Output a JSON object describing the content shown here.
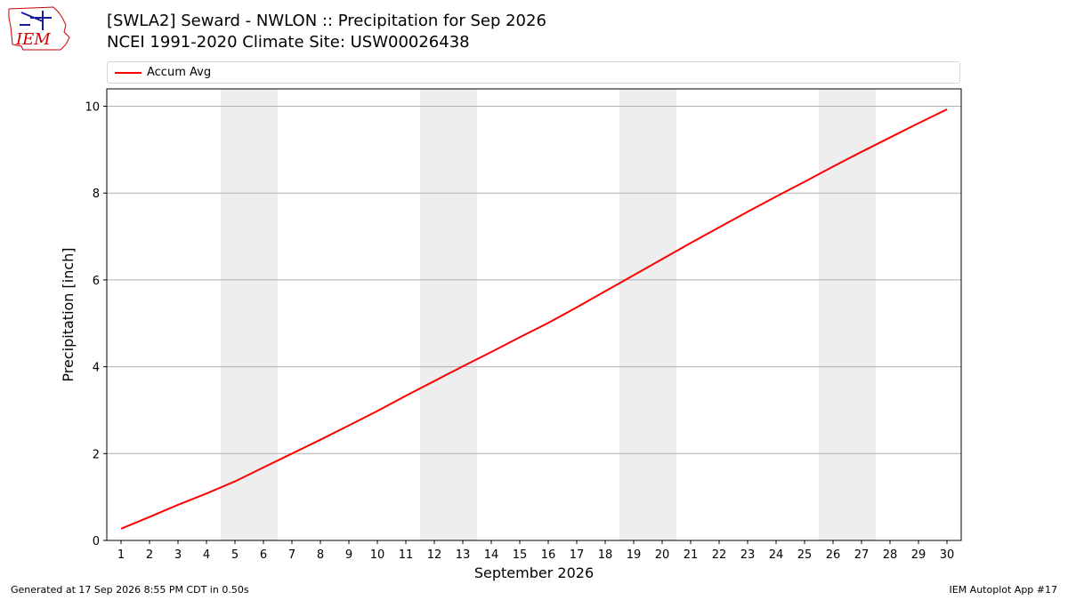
{
  "logo": {
    "text": "IEM"
  },
  "title": {
    "line1": "[SWLA2] Seward - NWLON :: Precipitation for Sep 2026",
    "line2": "NCEI 1991-2020 Climate Site: USW00026438"
  },
  "footer": {
    "generated": "Generated at 17 Sep 2026 8:55 PM CDT in 0.50s",
    "app": "IEM Autoplot App #17"
  },
  "colors": {
    "series": "#ff0000",
    "weekend_band": "#eeeeee",
    "grid": "#b0b0b0",
    "logo": "#cc0000"
  },
  "chart_data": {
    "type": "line",
    "xlabel": "September 2026",
    "ylabel": "Precipitation [inch]",
    "ylim": [
      0,
      10.4
    ],
    "xlim": [
      0.5,
      30.5
    ],
    "yticks": [
      0,
      2,
      4,
      6,
      8,
      10
    ],
    "grid": "horizontal",
    "legend": "top, above plot",
    "x": [
      1,
      2,
      3,
      4,
      5,
      6,
      7,
      8,
      9,
      10,
      11,
      12,
      13,
      14,
      15,
      16,
      17,
      18,
      19,
      20,
      21,
      22,
      23,
      24,
      25,
      26,
      27,
      28,
      29,
      30
    ],
    "weekend_spans": [
      [
        5,
        6
      ],
      [
        12,
        13
      ],
      [
        19,
        20
      ],
      [
        26,
        27
      ]
    ],
    "series": [
      {
        "name": "Accum Avg",
        "values": [
          0.27,
          0.54,
          0.82,
          1.08,
          1.36,
          1.68,
          2.0,
          2.32,
          2.65,
          2.98,
          3.33,
          3.67,
          4.01,
          4.34,
          4.68,
          5.01,
          5.37,
          5.74,
          6.11,
          6.48,
          6.85,
          7.21,
          7.57,
          7.92,
          8.26,
          8.61,
          8.95,
          9.28,
          9.61,
          9.93
        ]
      }
    ]
  }
}
